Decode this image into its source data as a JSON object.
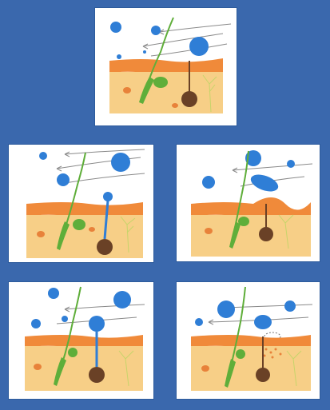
{
  "panels": [
    {
      "id": "p1",
      "stage": "particles-approaching-skin"
    },
    {
      "id": "p2",
      "stage": "particle-binding-at-pore"
    },
    {
      "id": "p3",
      "stage": "particle-landing-on-surface"
    },
    {
      "id": "p4",
      "stage": "particle-at-hair-follicle"
    },
    {
      "id": "p5",
      "stage": "particle-released-into-skin"
    }
  ],
  "colors": {
    "background": "#3a68ad",
    "panel": "#ffffff",
    "particle": "#2f7ed6",
    "epidermis": "#f08a3a",
    "dermis": "#f7cf87",
    "hair": "#5fae3a",
    "gland": "#6a4126",
    "nerve": "#c7d46a",
    "air_stream": "#7a7a7a"
  }
}
